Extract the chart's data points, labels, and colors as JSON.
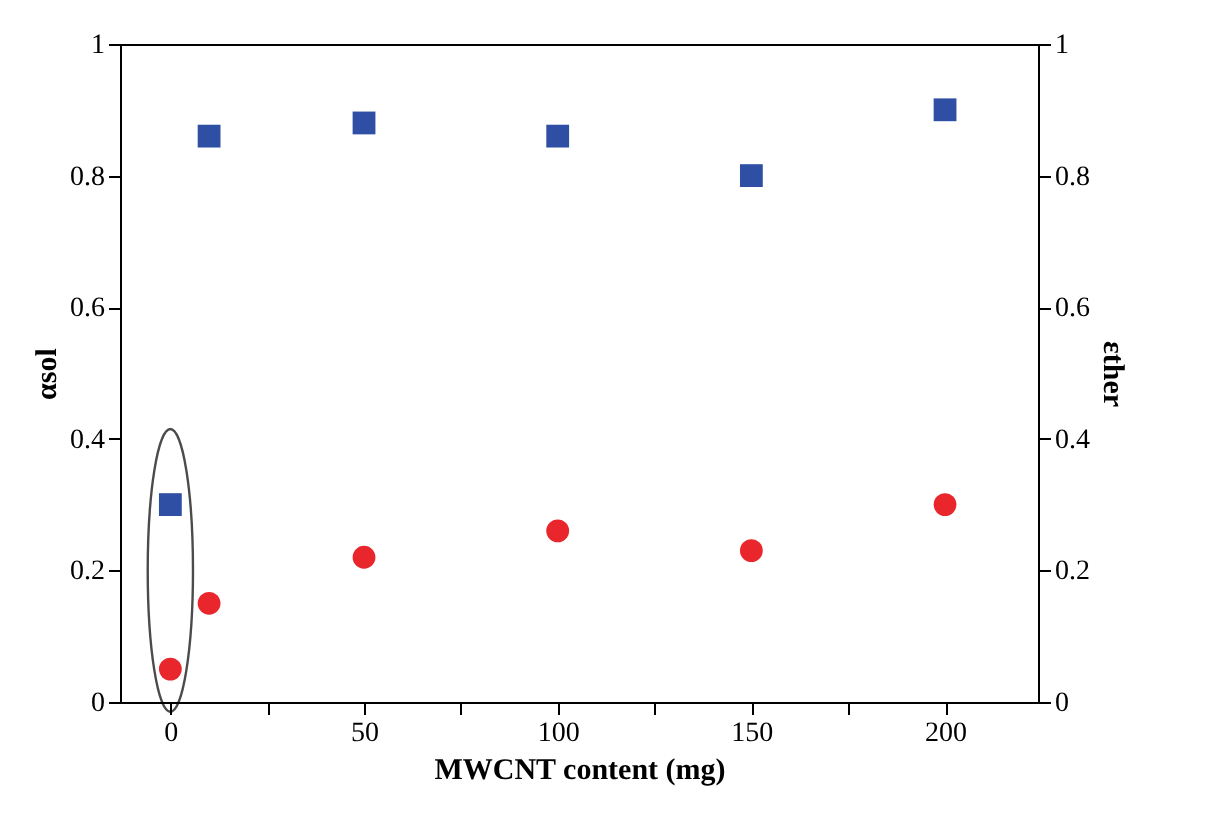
{
  "chart_data": {
    "type": "scatter",
    "xlabel": "MWCNT content (mg)",
    "ylabel": "αsol",
    "y2label": "εther",
    "x": [
      0,
      10,
      50,
      100,
      150,
      200
    ],
    "series": [
      {
        "color": "#2e4fa3",
        "marker": "square",
        "values": [
          0.3,
          0.86,
          0.88,
          0.86,
          0.8,
          0.9
        ]
      },
      {
        "color": "#e8262b",
        "marker": "circle",
        "axis": "y2",
        "values": [
          0.05,
          0.15,
          0.22,
          0.26,
          0.23,
          0.3
        ]
      }
    ],
    "xlim": [
      -13,
      224
    ],
    "xticks": [
      0,
      {
        "value": 25,
        "label": null
      },
      50,
      {
        "value": 75,
        "label": null
      },
      100,
      {
        "value": 125,
        "label": null
      },
      150,
      {
        "value": 175,
        "label": null
      },
      200
    ],
    "ylim": [
      0,
      1
    ],
    "yticks": [
      0,
      0.2,
      0.4,
      0.6,
      0.8,
      1
    ],
    "y2lim": [
      0,
      1
    ],
    "y2ticks": [
      0,
      0.2,
      0.4,
      0.6,
      0.8,
      1
    ],
    "grid": false
  }
}
